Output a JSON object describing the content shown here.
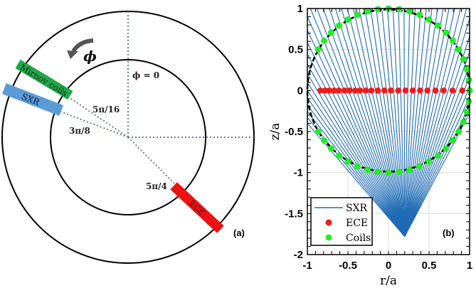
{
  "panel_a": {
    "label": "(a)",
    "direction_symbol": "ϕ",
    "phi_zero_label": "ϕ = 0",
    "angle_labels": [
      "5π/16",
      "3π/8",
      "5π/4"
    ],
    "diagnostics": [
      {
        "name": "Mirnov coils",
        "color": "#1fa84a"
      },
      {
        "name": "SXR",
        "color": "#5b9bd5"
      },
      {
        "name": "ECE",
        "color": "#ee1111"
      }
    ]
  },
  "chart_data": {
    "type": "scatter",
    "panel_label": "(b)",
    "xlabel": "r/a",
    "ylabel": "z/a",
    "xlim": [
      -1,
      1
    ],
    "ylim": [
      -2,
      1
    ],
    "xticks": [
      "-1",
      "-0.5",
      "0",
      "0.5",
      "1"
    ],
    "yticks": [
      "1",
      "0.5",
      "0",
      "-0.5",
      "-1",
      "-1.5",
      "-2"
    ],
    "grid": true,
    "legend_position": "bottom-left",
    "boundary_circle": {
      "center": [
        0,
        0
      ],
      "radius": 1
    },
    "series": [
      {
        "name": "SXR",
        "kind": "lines",
        "color": "#1f6bb5",
        "source": [
          0.2,
          -1.78
        ],
        "n_chords": 50,
        "angle_range_deg": [
          62,
          131
        ]
      },
      {
        "name": "ECE",
        "kind": "points",
        "color": "#ee1c1c",
        "x": [
          -0.84,
          -0.78,
          -0.73,
          -0.67,
          -0.61,
          -0.54,
          -0.48,
          -0.41,
          -0.35,
          -0.28,
          -0.21,
          -0.13,
          -0.05,
          0.03,
          0.12,
          0.21,
          0.3,
          0.39,
          0.48,
          0.58,
          0.68,
          0.79,
          0.91
        ],
        "y": 0
      },
      {
        "name": "Coils",
        "kind": "points",
        "color": "#22ee22",
        "angle_range_deg": [
          -150,
          150
        ],
        "angle_step_deg": 7.5,
        "radius": 1
      }
    ]
  }
}
